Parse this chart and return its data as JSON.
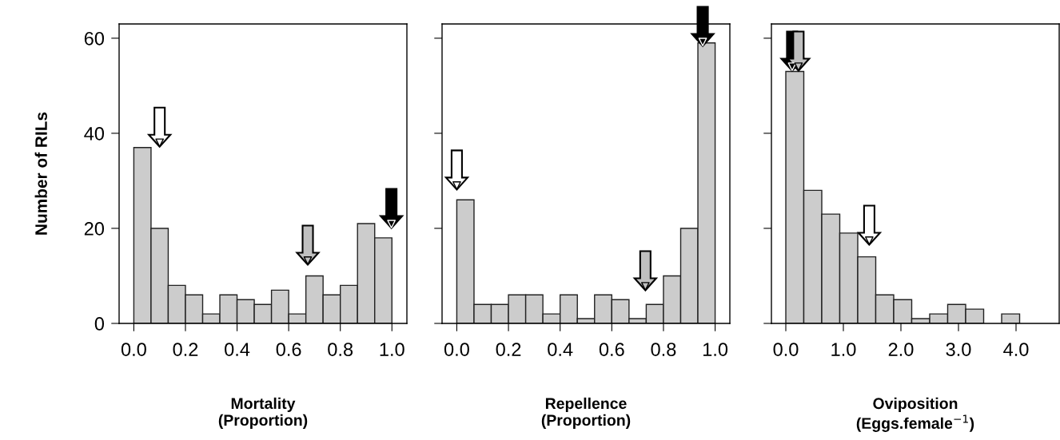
{
  "chart_data": [
    {
      "type": "histogram",
      "xlabel": "Mortality\n(Proportion)",
      "ylabel": "Number of RILs",
      "color": "#cccccc",
      "bins": [
        0,
        0.0667,
        0.1333,
        0.2,
        0.2667,
        0.3333,
        0.4,
        0.4667,
        0.5333,
        0.6,
        0.6667,
        0.7333,
        0.8,
        0.8667,
        0.9333,
        1.0
      ],
      "values": [
        37,
        20,
        8,
        6,
        2,
        6,
        5,
        4,
        7,
        2,
        10,
        6,
        8,
        21,
        18
      ],
      "series": [
        {
          "type": "scatter",
          "x": [
            0.1,
            0.674,
            0.998
          ],
          "values": [
            38,
            13.2,
            20.9
          ],
          "colors": [
            "#ffffff",
            "#c0c0c0",
            "#000000"
          ]
        }
      ],
      "xlim": [
        -0.057,
        1.058
      ],
      "xticks": [
        {
          "value": 0,
          "label": "0.0"
        },
        {
          "value": 0.2,
          "label": "0.2"
        },
        {
          "value": 0.4,
          "label": "0.4"
        },
        {
          "value": 0.6,
          "label": "0.6"
        },
        {
          "value": 0.8,
          "label": "0.8"
        },
        {
          "value": 1.0,
          "label": "1.0"
        }
      ],
      "ylim": [
        0,
        63
      ],
      "yticks": [
        0,
        20,
        40,
        60
      ],
      "grid": false,
      "legend": false
    },
    {
      "type": "histogram",
      "xlabel": "Repellence\n(Proportion)",
      "color": "#cccccc",
      "bins": [
        0,
        0.0667,
        0.1333,
        0.2,
        0.2667,
        0.3333,
        0.4,
        0.4667,
        0.5333,
        0.6,
        0.6667,
        0.7333,
        0.8,
        0.8667,
        0.9333,
        1.0
      ],
      "values": [
        26,
        4,
        4,
        6,
        6,
        2,
        6,
        1,
        6,
        5,
        1,
        4,
        10,
        20,
        59
      ],
      "series": [
        {
          "type": "scatter",
          "x": [
            0.0,
            0.73,
            0.952
          ],
          "values": [
            29,
            7.8,
            59.2
          ],
          "colors": [
            "#ffffff",
            "#c0c0c0",
            "#000000"
          ]
        }
      ],
      "xlim": [
        -0.057,
        1.057
      ],
      "xticks": [
        {
          "value": 0,
          "label": "0.0"
        },
        {
          "value": 0.2,
          "label": "0.2"
        },
        {
          "value": 0.4,
          "label": "0.4"
        },
        {
          "value": 0.6,
          "label": "0.6"
        },
        {
          "value": 0.8,
          "label": "0.8"
        },
        {
          "value": 1.0,
          "label": "1.0"
        }
      ],
      "ylim": [
        0,
        63
      ],
      "yticks": [
        0,
        20,
        40,
        60
      ],
      "tick_labels": "x",
      "grid": false,
      "legend": false
    },
    {
      "type": "histogram",
      "xlabel": "Oviposition\n(Eggs.female$^{−1}$)",
      "color": "#cccccc",
      "bins": [
        0,
        0.3125,
        0.625,
        0.9375,
        1.25,
        1.5625,
        1.875,
        2.1875,
        2.5,
        2.8125,
        3.125,
        3.4375,
        3.75,
        4.0625
      ],
      "values": [
        53,
        28,
        23,
        19,
        14,
        6,
        5,
        1,
        2,
        4,
        3,
        0,
        2
      ],
      "series": [
        {
          "type": "scatter",
          "x": [
            0.11,
            0.22,
            1.45
          ],
          "values": [
            54,
            54,
            17.4
          ],
          "colors": [
            "#000000",
            "#c0c0c0",
            "#ffffff"
          ]
        }
      ],
      "xlim": [
        -0.25,
        4.75
      ],
      "xticks": [
        {
          "value": 0,
          "label": "0.0"
        },
        {
          "value": 1,
          "label": "1.0"
        },
        {
          "value": 2,
          "label": "2.0"
        },
        {
          "value": 3,
          "label": "3.0"
        },
        {
          "value": 4,
          "label": "4.0"
        }
      ],
      "ylim": [
        0,
        63
      ],
      "yticks": [
        0,
        20,
        40,
        60
      ],
      "tick_labels": "x",
      "grid": false,
      "legend": false
    }
  ]
}
